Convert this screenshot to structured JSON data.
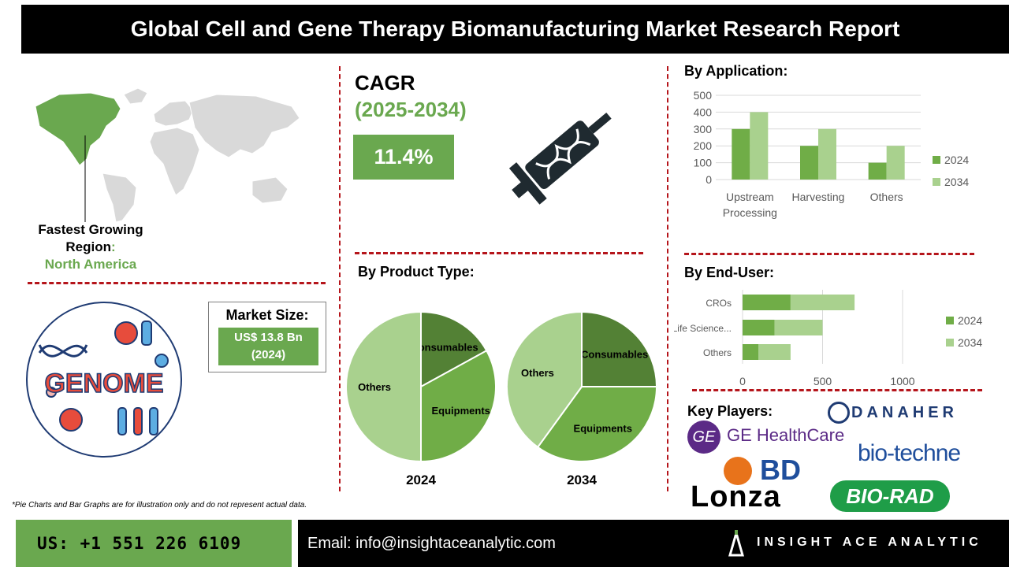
{
  "header": {
    "title": "Global Cell and Gene Therapy Biomanufacturing Market Research Report"
  },
  "region": {
    "label_line1": "Fastest Growing",
    "label_line2": "Region",
    "colon": ":",
    "value": "North America"
  },
  "cagr": {
    "title": "CAGR",
    "period": "(2025-2034)",
    "value": "11.4%"
  },
  "market_size": {
    "title": "Market Size:",
    "value_line1": "US$ 13.8 Bn",
    "value_line2": "(2024)"
  },
  "product_type": {
    "title": "By Product Type:"
  },
  "application": {
    "title": "By Application:"
  },
  "end_user": {
    "title": "By End-User:"
  },
  "key_players": {
    "title": "Key Players:",
    "logos": [
      "GE HealthCare",
      "DANAHER",
      "bio-techne",
      "BD",
      "Lonza",
      "BIO-RAD"
    ]
  },
  "genome_art": {
    "text": "GENOME"
  },
  "footnote": "*Pie Charts and Bar Graphs are for illustration only and do not represent actual data.",
  "footer": {
    "phone": "US: +1 551 226 6109",
    "email": "Email: info@insightaceanalytic.com",
    "brand": "INSIGHT ACE ANALYTIC"
  },
  "colors": {
    "dark_green": "#538135",
    "mid_green": "#70ad47",
    "light_green": "#a9d18e",
    "accent_red": "#b5151b"
  },
  "chart_data": [
    {
      "type": "bar",
      "title": "By Application:",
      "categories": [
        "Upstream Processing",
        "Harvesting",
        "Others"
      ],
      "series": [
        {
          "name": "2024",
          "values": [
            300,
            200,
            100
          ]
        },
        {
          "name": "2034",
          "values": [
            400,
            300,
            200
          ]
        }
      ],
      "ylim": [
        0,
        500
      ],
      "yticks": [
        0,
        100,
        200,
        300,
        400,
        500
      ],
      "grid": true,
      "legend": "right"
    },
    {
      "type": "bar",
      "orientation": "horizontal",
      "stacked": true,
      "title": "By End-User:",
      "categories": [
        "CROs",
        "Life Science...",
        "Others"
      ],
      "series": [
        {
          "name": "2024",
          "values": [
            300,
            200,
            100
          ]
        },
        {
          "name": "2034",
          "values": [
            400,
            300,
            200
          ]
        }
      ],
      "xlim": [
        0,
        1000
      ],
      "xticks": [
        0,
        500,
        1000
      ],
      "grid": true,
      "legend": "right"
    },
    {
      "type": "pie",
      "title": "2024",
      "labels": [
        "Consumables",
        "Equipments",
        "Others"
      ],
      "values": [
        17,
        33,
        50
      ]
    },
    {
      "type": "pie",
      "title": "2034",
      "labels": [
        "Consumables",
        "Equipments",
        "Others"
      ],
      "values": [
        25,
        35,
        40
      ]
    }
  ]
}
